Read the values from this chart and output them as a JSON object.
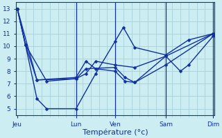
{
  "title": "Température (°c)",
  "background_color": "#cceef2",
  "grid_color": "#aad4dc",
  "line_color": "#1030a0",
  "spine_color": "#1030a0",
  "ylim": [
    4.5,
    13.5
  ],
  "yticks": [
    5,
    6,
    7,
    8,
    9,
    10,
    11,
    12,
    13
  ],
  "xlim": [
    -2,
    242
  ],
  "day_positions": [
    0,
    72,
    120,
    182,
    240
  ],
  "day_labels": [
    "Jeu",
    "Lun",
    "Ven",
    "Sam",
    "Dim"
  ],
  "lines": [
    {
      "x": [
        0,
        10,
        36,
        72,
        84,
        120,
        132,
        144,
        182,
        240
      ],
      "y": [
        13.0,
        10.1,
        7.2,
        7.4,
        8.2,
        8.3,
        7.5,
        7.1,
        8.5,
        11.0
      ]
    },
    {
      "x": [
        0,
        24,
        72,
        84,
        96,
        120,
        132,
        144,
        182,
        240
      ],
      "y": [
        13.0,
        7.3,
        7.5,
        8.8,
        8.2,
        8.0,
        7.2,
        7.1,
        9.2,
        11.0
      ]
    },
    {
      "x": [
        0,
        10,
        24,
        36,
        72,
        96,
        120,
        130,
        144,
        182,
        210,
        240
      ],
      "y": [
        13.0,
        10.1,
        5.8,
        5.0,
        5.0,
        7.8,
        10.4,
        11.5,
        9.9,
        9.3,
        10.5,
        11.0
      ]
    },
    {
      "x": [
        0,
        10,
        24,
        72,
        84,
        96,
        120,
        144,
        182,
        200,
        210,
        240
      ],
      "y": [
        13.0,
        10.1,
        7.3,
        7.4,
        7.8,
        8.8,
        8.5,
        8.3,
        9.2,
        8.0,
        8.5,
        10.8
      ]
    }
  ],
  "vlines": [
    72,
    120,
    182,
    240
  ],
  "marker_size": 2.5,
  "line_width": 1.0,
  "tick_fontsize": 6.5,
  "xlabel_fontsize": 8
}
